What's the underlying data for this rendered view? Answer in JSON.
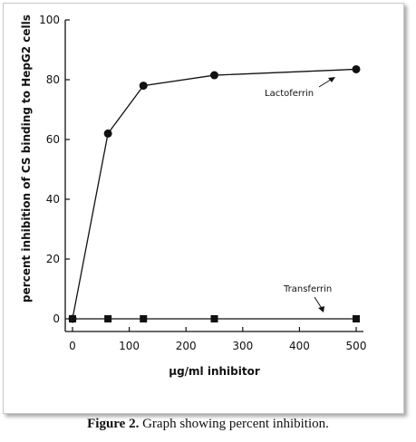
{
  "caption": {
    "label": "Figure 2.",
    "text": " Graph showing percent inhibition."
  },
  "chart_data": {
    "type": "line",
    "xlabel": "µg/ml inhibitor",
    "ylabel": "percent inhibition of CS binding to HepG2 cells",
    "xlim": [
      0,
      500
    ],
    "ylim": [
      0,
      100
    ],
    "xticks": [
      "0",
      "100",
      "200",
      "300",
      "400",
      "500"
    ],
    "yticks": [
      "0",
      "20",
      "40",
      "60",
      "80",
      "100"
    ],
    "grid": false,
    "series": [
      {
        "name": "Lactoferrin",
        "marker": "circle",
        "x": [
          0,
          62.5,
          125,
          250,
          500
        ],
        "y": [
          0,
          62,
          78,
          81.5,
          83.5
        ]
      },
      {
        "name": "Transferrin",
        "marker": "square",
        "x": [
          0,
          62.5,
          125,
          250,
          500
        ],
        "y": [
          0,
          0,
          0,
          0,
          0
        ]
      }
    ]
  }
}
